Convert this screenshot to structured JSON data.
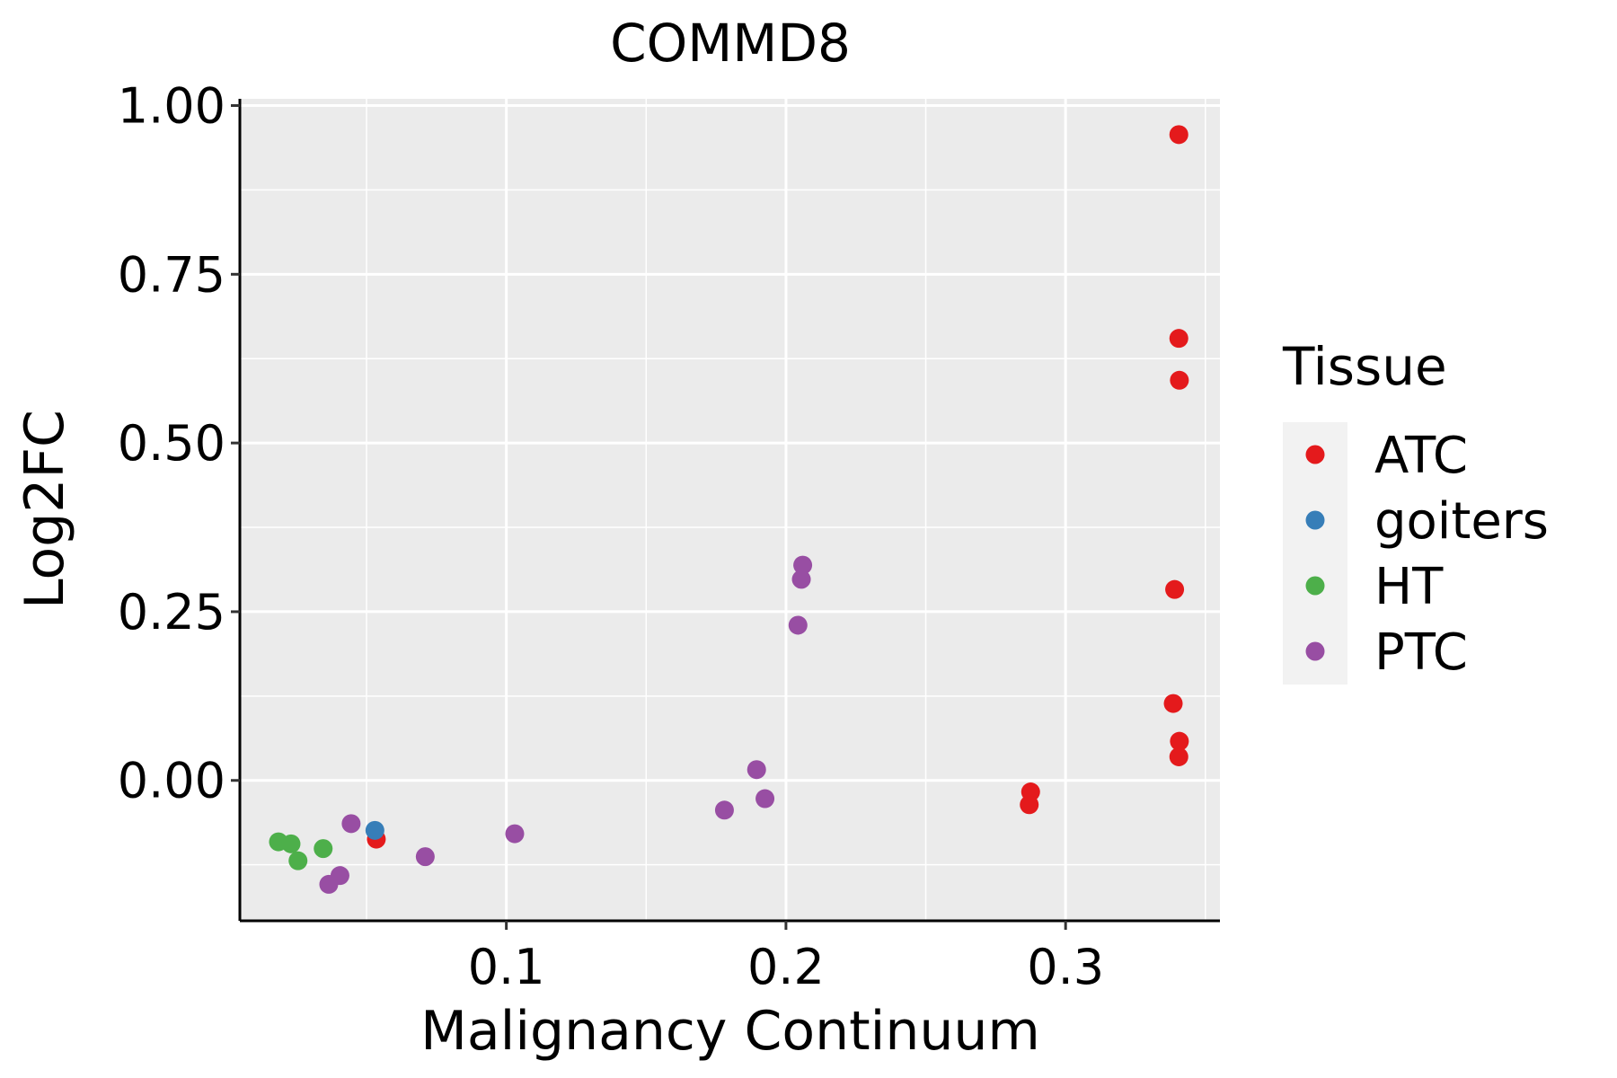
{
  "chart_data": {
    "type": "scatter",
    "title": "COMMD8",
    "xlabel": "Malignancy Continuum",
    "ylabel": "Log2FC",
    "xlim": [
      0.0047,
      0.3552
    ],
    "ylim": [
      -0.208,
      1.01
    ],
    "x_ticks": [
      {
        "value": 0.1,
        "label": "0.1"
      },
      {
        "value": 0.2,
        "label": "0.2"
      },
      {
        "value": 0.3,
        "label": "0.3"
      }
    ],
    "y_ticks": [
      {
        "value": 0.0,
        "label": "0.00"
      },
      {
        "value": 0.25,
        "label": "0.25"
      },
      {
        "value": 0.5,
        "label": "0.50"
      },
      {
        "value": 0.75,
        "label": "0.75"
      },
      {
        "value": 1.0,
        "label": "1.00"
      }
    ],
    "grid": true,
    "legend": {
      "title": "Tissue",
      "position": "right",
      "entries": [
        {
          "name": "ATC",
          "color": "#E41A1C"
        },
        {
          "name": "goiters",
          "color": "#377EB8"
        },
        {
          "name": "HT",
          "color": "#4DAF4A"
        },
        {
          "name": "PTC",
          "color": "#984EA3"
        }
      ]
    },
    "series": [
      {
        "name": "ATC",
        "color": "#E41A1C",
        "points": [
          {
            "x": 0.3405,
            "y": 0.957
          },
          {
            "x": 0.3405,
            "y": 0.655
          },
          {
            "x": 0.3407,
            "y": 0.593
          },
          {
            "x": 0.339,
            "y": 0.283
          },
          {
            "x": 0.3385,
            "y": 0.114
          },
          {
            "x": 0.3407,
            "y": 0.058
          },
          {
            "x": 0.3405,
            "y": 0.035
          },
          {
            "x": 0.2875,
            "y": -0.017
          },
          {
            "x": 0.287,
            "y": -0.036
          },
          {
            "x": 0.0535,
            "y": -0.087
          }
        ]
      },
      {
        "name": "goiters",
        "color": "#377EB8",
        "points": [
          {
            "x": 0.053,
            "y": -0.074
          }
        ]
      },
      {
        "name": "HT",
        "color": "#4DAF4A",
        "points": [
          {
            "x": 0.0185,
            "y": -0.091
          },
          {
            "x": 0.023,
            "y": -0.094
          },
          {
            "x": 0.0255,
            "y": -0.119
          },
          {
            "x": 0.0345,
            "y": -0.101
          }
        ]
      },
      {
        "name": "PTC",
        "color": "#984EA3",
        "points": [
          {
            "x": 0.206,
            "y": 0.319
          },
          {
            "x": 0.2055,
            "y": 0.298
          },
          {
            "x": 0.2043,
            "y": 0.23
          },
          {
            "x": 0.1895,
            "y": 0.016
          },
          {
            "x": 0.1925,
            "y": -0.027
          },
          {
            "x": 0.178,
            "y": -0.044
          },
          {
            "x": 0.103,
            "y": -0.079
          },
          {
            "x": 0.071,
            "y": -0.113
          },
          {
            "x": 0.0445,
            "y": -0.064
          },
          {
            "x": 0.0405,
            "y": -0.141
          },
          {
            "x": 0.0365,
            "y": -0.154
          }
        ]
      }
    ]
  }
}
